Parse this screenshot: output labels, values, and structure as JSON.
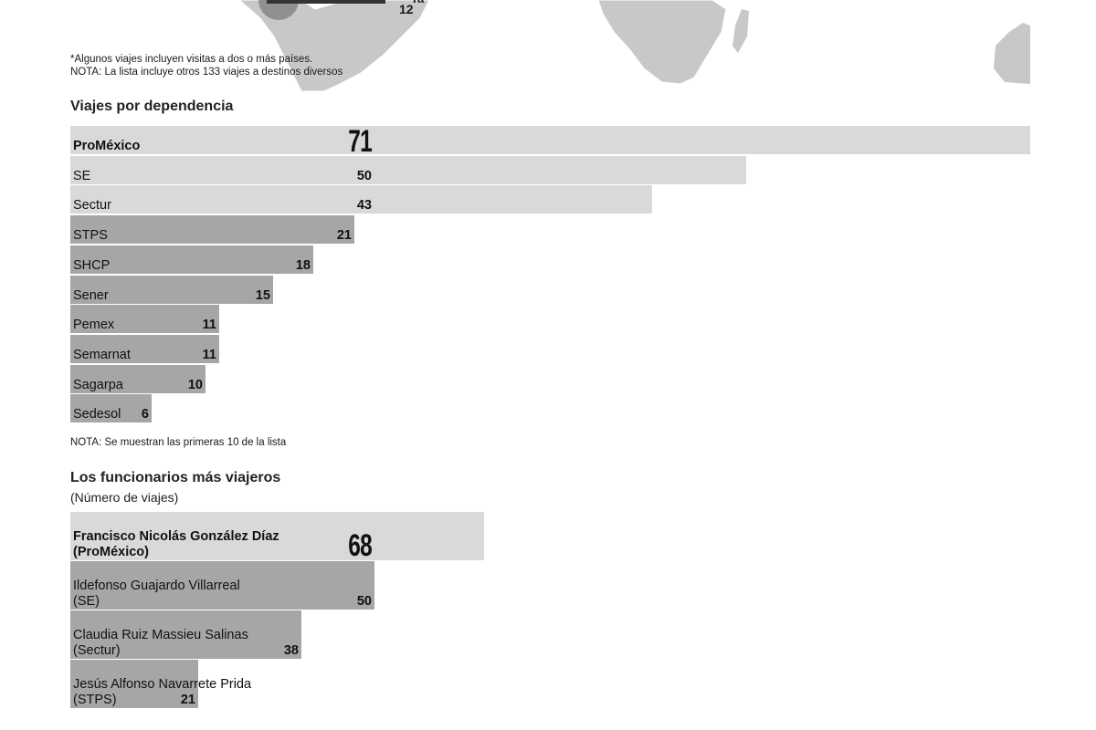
{
  "map": {
    "partial_value": "12",
    "partial_label_fragment": "ra",
    "notes": [
      "*Algunos viajes incluyen visitas a dos o más países.",
      "NOTA: La lista incluye otros 133 viajes a destinos diversos"
    ]
  },
  "dependencias": {
    "title": "Viajes por dependencia",
    "note": "NOTA: Se muestran las primeras 10 de la lista"
  },
  "funcionarios": {
    "title": "Los funcionarios más viajeros",
    "subtitle": "(Número de viajes)"
  },
  "colors": {
    "bar_light": "#d9d9d9",
    "bar_dark": "#a6a6a6",
    "map_land": "#c8c8c8",
    "map_dark": "#8a8a8a"
  },
  "chart_data": [
    {
      "type": "bar",
      "orientation": "horizontal",
      "title": "Viajes por dependencia",
      "categories": [
        "ProMéxico",
        "SE",
        "Sectur",
        "STPS",
        "SHCP",
        "Sener",
        "Pemex",
        "Semarnat",
        "Sagarpa",
        "Sedesol"
      ],
      "values": [
        71,
        50,
        43,
        21,
        18,
        15,
        11,
        11,
        10,
        6
      ],
      "highlight_light": [
        true,
        true,
        true,
        false,
        false,
        false,
        false,
        false,
        false,
        false
      ],
      "xlim": [
        0,
        71
      ]
    },
    {
      "type": "bar",
      "orientation": "horizontal",
      "title": "Los funcionarios más viajeros",
      "subtitle": "(Número de viajes)",
      "categories": [
        [
          "Francisco Nicolás González Díaz",
          "(ProMéxico)"
        ],
        [
          "Ildefonso Guajardo Villarreal",
          "(SE)"
        ],
        [
          "Claudia Ruiz Massieu Salinas",
          "(Sectur)"
        ],
        [
          "Jesús Alfonso Navarrete Prida",
          "(STPS)"
        ]
      ],
      "values": [
        68,
        50,
        38,
        21
      ],
      "highlight_light": [
        true,
        false,
        false,
        false
      ],
      "xlim": [
        0,
        100
      ]
    }
  ]
}
